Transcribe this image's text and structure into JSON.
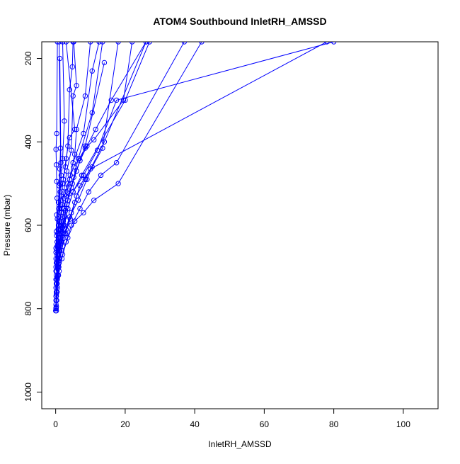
{
  "chart_data": {
    "type": "line",
    "title": "ATOM4 Southbound InletRH_AMSSD",
    "xlabel": "InletRH_AMSSD",
    "ylabel": "Pressure (mbar)",
    "xlim": [
      -4,
      110
    ],
    "ylim": [
      1040,
      160
    ],
    "y_reversed": true,
    "x_ticks": [
      0,
      20,
      40,
      60,
      80,
      100
    ],
    "y_ticks": [
      200,
      400,
      600,
      800,
      1000
    ],
    "grid": false,
    "legend": "none",
    "marker": "open-circle",
    "color": "#0000ff",
    "series": [
      {
        "points": [
          [
            0.2,
            805
          ],
          [
            0.3,
            780
          ],
          [
            0.4,
            740
          ],
          [
            0.5,
            700
          ],
          [
            0.8,
            650
          ],
          [
            1.0,
            600
          ],
          [
            0.9,
            560
          ],
          [
            1.2,
            500
          ],
          [
            1.5,
            450
          ],
          [
            1.2,
            200
          ]
        ]
      },
      {
        "points": [
          [
            0.1,
            800
          ],
          [
            0.3,
            760
          ],
          [
            0.6,
            720
          ],
          [
            1.0,
            680
          ],
          [
            1.5,
            640
          ],
          [
            2.2,
            600
          ],
          [
            3.5,
            560
          ],
          [
            5.0,
            520
          ],
          [
            8.0,
            480
          ],
          [
            12.0,
            420
          ],
          [
            17.5,
            300
          ],
          [
            80.0,
            160
          ]
        ]
      },
      {
        "points": [
          [
            0.1,
            798
          ],
          [
            0.4,
            760
          ],
          [
            0.8,
            720
          ],
          [
            1.8,
            680
          ],
          [
            3.0,
            640
          ],
          [
            4.5,
            600
          ],
          [
            7.0,
            560
          ],
          [
            9.5,
            520
          ],
          [
            13.0,
            480
          ],
          [
            17.5,
            450
          ],
          [
            37.0,
            160
          ]
        ]
      },
      {
        "points": [
          [
            0.2,
            795
          ],
          [
            0.5,
            750
          ],
          [
            1.0,
            710
          ],
          [
            2.0,
            670
          ],
          [
            3.5,
            630
          ],
          [
            5.5,
            590
          ],
          [
            8.0,
            570
          ],
          [
            11.0,
            540
          ],
          [
            18.0,
            500
          ],
          [
            42.0,
            160
          ]
        ]
      },
      {
        "points": [
          [
            0.1,
            790
          ],
          [
            0.3,
            740
          ],
          [
            0.7,
            700
          ],
          [
            1.2,
            660
          ],
          [
            2.5,
            620
          ],
          [
            4.0,
            580
          ],
          [
            6.5,
            540
          ],
          [
            9.0,
            490
          ],
          [
            10.5,
            460
          ],
          [
            13.5,
            415
          ],
          [
            18.0,
            160
          ]
        ]
      },
      {
        "points": [
          [
            0.1,
            780
          ],
          [
            0.4,
            740
          ],
          [
            0.9,
            700
          ],
          [
            1.6,
            660
          ],
          [
            2.8,
            620
          ],
          [
            4.2,
            585
          ],
          [
            5.5,
            545
          ],
          [
            7.0,
            505
          ],
          [
            10.0,
            465
          ],
          [
            78.0,
            160
          ]
        ]
      },
      {
        "points": [
          [
            0.2,
            770
          ],
          [
            0.5,
            730
          ],
          [
            1.0,
            690
          ],
          [
            2.0,
            650
          ],
          [
            3.0,
            610
          ],
          [
            4.5,
            570
          ],
          [
            6.0,
            530
          ],
          [
            8.5,
            490
          ],
          [
            14.0,
            400
          ],
          [
            26.0,
            160
          ]
        ]
      },
      {
        "points": [
          [
            0.2,
            760
          ],
          [
            0.6,
            720
          ],
          [
            1.0,
            680
          ],
          [
            1.7,
            640
          ],
          [
            2.5,
            600
          ],
          [
            3.5,
            560
          ],
          [
            5.0,
            520
          ],
          [
            7.5,
            480
          ],
          [
            20.0,
            300
          ],
          [
            27.0,
            160
          ]
        ]
      },
      {
        "points": [
          [
            0.1,
            750
          ],
          [
            0.3,
            710
          ],
          [
            0.7,
            670
          ],
          [
            1.4,
            630
          ],
          [
            2.2,
            590
          ],
          [
            3.2,
            550
          ],
          [
            4.5,
            510
          ],
          [
            6.0,
            470
          ],
          [
            8.5,
            410
          ],
          [
            14.0,
            210
          ]
        ]
      },
      {
        "points": [
          [
            0.2,
            740
          ],
          [
            0.6,
            700
          ],
          [
            1.1,
            660
          ],
          [
            1.8,
            620
          ],
          [
            2.6,
            580
          ],
          [
            3.5,
            540
          ],
          [
            4.8,
            500
          ],
          [
            6.5,
            440
          ],
          [
            10.5,
            330
          ],
          [
            13.5,
            160
          ]
        ]
      },
      {
        "points": [
          [
            0.1,
            730
          ],
          [
            0.5,
            690
          ],
          [
            0.9,
            650
          ],
          [
            1.5,
            610
          ],
          [
            2.2,
            570
          ],
          [
            3.0,
            530
          ],
          [
            4.0,
            490
          ],
          [
            5.0,
            450
          ],
          [
            8.0,
            380
          ],
          [
            10.5,
            230
          ],
          [
            12.5,
            160
          ]
        ]
      },
      {
        "points": [
          [
            0.2,
            720
          ],
          [
            0.5,
            680
          ],
          [
            1.0,
            640
          ],
          [
            1.7,
            600
          ],
          [
            2.5,
            560
          ],
          [
            3.3,
            520
          ],
          [
            4.2,
            480
          ],
          [
            5.5,
            430
          ],
          [
            6.0,
            370
          ],
          [
            8.5,
            290
          ],
          [
            10.0,
            160
          ]
        ]
      },
      {
        "points": [
          [
            0.1,
            710
          ],
          [
            0.4,
            670
          ],
          [
            0.8,
            630
          ],
          [
            1.2,
            590
          ],
          [
            1.8,
            550
          ],
          [
            2.5,
            510
          ],
          [
            3.2,
            470
          ],
          [
            4.5,
            420
          ],
          [
            5.0,
            290
          ],
          [
            6.0,
            265
          ],
          [
            5.2,
            160
          ]
        ]
      },
      {
        "points": [
          [
            0.1,
            700
          ],
          [
            0.3,
            660
          ],
          [
            0.6,
            620
          ],
          [
            1.0,
            580
          ],
          [
            1.4,
            540
          ],
          [
            2.0,
            500
          ],
          [
            2.8,
            460
          ],
          [
            3.5,
            410
          ],
          [
            4.0,
            275
          ],
          [
            4.8,
            220
          ],
          [
            5.0,
            160
          ]
        ]
      },
      {
        "points": [
          [
            0.2,
            690
          ],
          [
            0.4,
            650
          ],
          [
            0.7,
            610
          ],
          [
            1.1,
            570
          ],
          [
            1.6,
            530
          ],
          [
            2.2,
            490
          ],
          [
            3.0,
            440
          ],
          [
            4.0,
            390
          ],
          [
            5.5,
            370
          ],
          [
            3.0,
            160
          ]
        ]
      },
      {
        "points": [
          [
            0.1,
            680
          ],
          [
            0.4,
            640
          ],
          [
            0.8,
            600
          ],
          [
            1.0,
            560
          ],
          [
            1.3,
            520
          ],
          [
            1.6,
            480
          ],
          [
            2.0,
            440
          ],
          [
            2.5,
            350
          ],
          [
            2.0,
            160
          ]
        ]
      },
      {
        "points": [
          [
            0.1,
            665
          ],
          [
            0.3,
            625
          ],
          [
            0.5,
            585
          ],
          [
            0.8,
            545
          ],
          [
            1.0,
            505
          ],
          [
            1.2,
            465
          ],
          [
            1.4,
            415
          ],
          [
            1.0,
            160
          ]
        ]
      },
      {
        "points": [
          [
            0.1,
            655
          ],
          [
            0.2,
            615
          ],
          [
            0.3,
            575
          ],
          [
            0.4,
            535
          ],
          [
            0.3,
            495
          ],
          [
            0.2,
            455
          ],
          [
            0.1,
            418
          ],
          [
            0.3,
            380
          ],
          [
            0.5,
            160
          ]
        ]
      },
      {
        "points": [
          [
            0.0,
            805
          ],
          [
            0.1,
            770
          ],
          [
            0.2,
            730
          ],
          [
            0.4,
            690
          ],
          [
            0.6,
            650
          ],
          [
            1.0,
            610
          ],
          [
            1.6,
            570
          ],
          [
            2.4,
            535
          ],
          [
            3.5,
            500
          ],
          [
            5.2,
            460
          ],
          [
            6.8,
            440
          ],
          [
            8.5,
            415
          ],
          [
            11.0,
            395
          ],
          [
            19.5,
            300
          ],
          [
            22.0,
            160
          ]
        ]
      },
      {
        "points": [
          [
            0.1,
            800
          ],
          [
            0.2,
            765
          ],
          [
            0.5,
            725
          ],
          [
            0.9,
            685
          ],
          [
            1.4,
            645
          ],
          [
            2.0,
            605
          ],
          [
            2.8,
            565
          ],
          [
            3.8,
            525
          ],
          [
            5.2,
            485
          ],
          [
            7.0,
            445
          ],
          [
            9.0,
            410
          ],
          [
            11.5,
            370
          ],
          [
            16.0,
            300
          ],
          [
            26.0,
            160
          ]
        ]
      }
    ]
  }
}
